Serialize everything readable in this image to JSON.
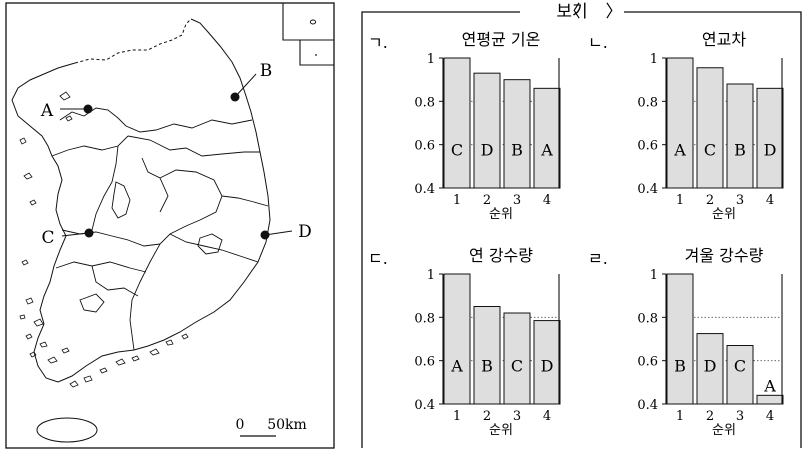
{
  "map": {
    "points": [
      {
        "label": "A"
      },
      {
        "label": "B"
      },
      {
        "label": "C"
      },
      {
        "label": "D"
      }
    ],
    "scale_zero": "0",
    "scale_distance": "50km"
  },
  "box": {
    "title": "보기"
  },
  "chart_data": [
    {
      "type": "bar",
      "marker": "ㄱ.",
      "title": "연평균 기온",
      "xlabel": "순위",
      "categories": [
        "1",
        "2",
        "3",
        "4"
      ],
      "bar_labels": [
        "C",
        "D",
        "B",
        "A"
      ],
      "values": [
        1.0,
        0.93,
        0.9,
        0.86
      ],
      "yticks": [
        "1",
        "0.8",
        "0.6",
        "0.4"
      ],
      "ylim": [
        0.4,
        1.0
      ],
      "grid": "dotted horizontal at 0.8 and 0.6"
    },
    {
      "type": "bar",
      "marker": "ㄴ.",
      "title": "연교차",
      "xlabel": "순위",
      "categories": [
        "1",
        "2",
        "3",
        "4"
      ],
      "bar_labels": [
        "A",
        "C",
        "B",
        "D"
      ],
      "values": [
        1.0,
        0.955,
        0.88,
        0.86
      ],
      "yticks": [
        "1",
        "0.8",
        "0.6",
        "0.4"
      ],
      "ylim": [
        0.4,
        1.0
      ],
      "grid": "dotted horizontal at 0.8 and 0.6"
    },
    {
      "type": "bar",
      "marker": "ㄷ.",
      "title": "연 강수량",
      "xlabel": "순위",
      "categories": [
        "1",
        "2",
        "3",
        "4"
      ],
      "bar_labels": [
        "A",
        "B",
        "C",
        "D"
      ],
      "values": [
        1.0,
        0.85,
        0.82,
        0.785
      ],
      "yticks": [
        "1",
        "0.8",
        "0.6",
        "0.4"
      ],
      "ylim": [
        0.4,
        1.0
      ],
      "grid": "dotted horizontal at 0.8 and 0.6"
    },
    {
      "type": "bar",
      "marker": "ㄹ.",
      "title": "겨울 강수량",
      "xlabel": "순위",
      "categories": [
        "1",
        "2",
        "3",
        "4"
      ],
      "bar_labels": [
        "B",
        "D",
        "C",
        "A"
      ],
      "values": [
        1.0,
        0.725,
        0.67,
        0.44
      ],
      "yticks": [
        "1",
        "0.8",
        "0.6",
        "0.4"
      ],
      "ylim": [
        0.4,
        1.0
      ],
      "grid": "dotted horizontal at 0.8 and 0.6"
    }
  ]
}
